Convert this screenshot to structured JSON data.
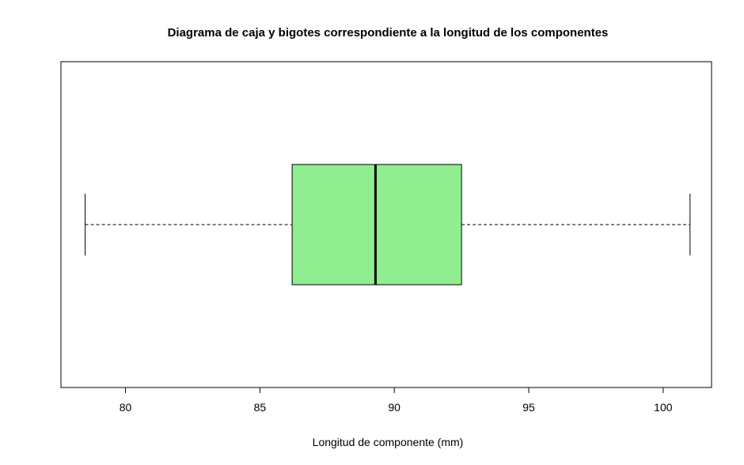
{
  "chart_data": {
    "type": "boxplot",
    "orientation": "horizontal",
    "title": "Diagrama de caja y bigotes correspondiente a la longitud de los componentes",
    "xlabel": "Longitud de componente (mm)",
    "ylabel": "",
    "xlim": [
      77.6,
      101.8
    ],
    "x_ticks": [
      80,
      85,
      90,
      95,
      100
    ],
    "x_tick_labels": [
      "80",
      "85",
      "90",
      "95",
      "100"
    ],
    "box": {
      "whisker_low": 78.5,
      "q1": 86.2,
      "median": 89.3,
      "q3": 92.5,
      "whisker_high": 101.0
    },
    "fill_color": "#90EE90",
    "border_color": "#000000",
    "grid": false,
    "legend": "none"
  }
}
